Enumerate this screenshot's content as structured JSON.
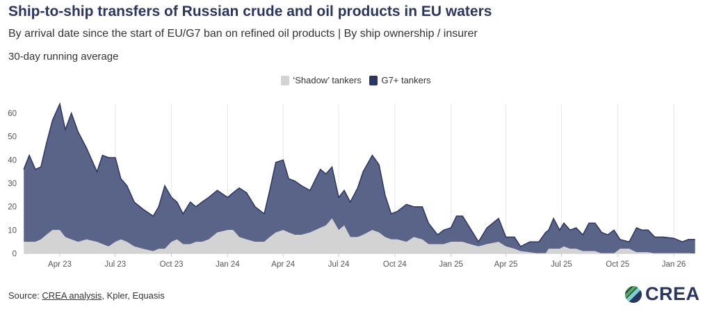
{
  "title": "Ship-to-ship transfers of Russian crude and oil products in EU waters",
  "subtitle": "By arrival date since the start of EU/G7 ban on refined oil products | By ship ownership / insurer",
  "note": "30-day running average",
  "source": {
    "prefix": "Source: ",
    "link": "CREA analysis",
    "rest": ", Kpler, Equasis"
  },
  "logo": "CREA",
  "colors": {
    "shadow": "#d3d3d3",
    "g7": "#5a6488",
    "g7_line": "#2b3561"
  },
  "chart_data": {
    "type": "area",
    "stacked": true,
    "title": "Ship-to-ship transfers of Russian crude and oil products in EU waters",
    "xlabel": "",
    "ylabel": "",
    "ylim": [
      0,
      65
    ],
    "yticks": [
      0,
      10,
      20,
      30,
      40,
      50,
      60
    ],
    "xticks": [
      {
        "date": "2023-04-01",
        "label": "Apr 23"
      },
      {
        "date": "2023-07-01",
        "label": "Jul 23"
      },
      {
        "date": "2023-10-01",
        "label": "Oct 23"
      },
      {
        "date": "2024-01-01",
        "label": "Jan 24"
      },
      {
        "date": "2024-04-01",
        "label": "Apr 24"
      },
      {
        "date": "2024-07-01",
        "label": "Jul 24"
      },
      {
        "date": "2024-10-01",
        "label": "Oct 24"
      },
      {
        "date": "2025-01-01",
        "label": "Jan 25"
      },
      {
        "date": "2025-04-01",
        "label": "Apr 25"
      },
      {
        "date": "2025-07-01",
        "label": "Jul 25"
      },
      {
        "date": "2025-10-01",
        "label": "Oct 25"
      },
      {
        "date": "2026-01-01",
        "label": "Jan 26"
      }
    ],
    "xlim": [
      "2023-02-01",
      "2026-02-05"
    ],
    "legend_position": "top-center",
    "grid": "vertical",
    "x": [
      "2023-02-01",
      "2023-02-10",
      "2023-02-20",
      "2023-03-01",
      "2023-03-10",
      "2023-03-20",
      "2023-04-01",
      "2023-04-10",
      "2023-04-20",
      "2023-05-01",
      "2023-05-15",
      "2023-06-01",
      "2023-06-10",
      "2023-06-20",
      "2023-07-01",
      "2023-07-10",
      "2023-07-20",
      "2023-08-01",
      "2023-08-15",
      "2023-09-01",
      "2023-09-10",
      "2023-09-20",
      "2023-10-01",
      "2023-10-10",
      "2023-10-20",
      "2023-11-01",
      "2023-11-10",
      "2023-11-20",
      "2023-12-01",
      "2023-12-15",
      "2024-01-01",
      "2024-01-10",
      "2024-01-20",
      "2024-02-01",
      "2024-02-15",
      "2024-03-01",
      "2024-03-10",
      "2024-03-20",
      "2024-04-01",
      "2024-04-10",
      "2024-04-20",
      "2024-05-01",
      "2024-05-15",
      "2024-06-01",
      "2024-06-10",
      "2024-06-20",
      "2024-07-01",
      "2024-07-10",
      "2024-07-20",
      "2024-08-01",
      "2024-08-10",
      "2024-08-25",
      "2024-09-05",
      "2024-09-15",
      "2024-09-25",
      "2024-10-05",
      "2024-10-20",
      "2024-11-01",
      "2024-11-15",
      "2024-11-25",
      "2024-12-10",
      "2024-12-20",
      "2025-01-01",
      "2025-01-10",
      "2025-01-20",
      "2025-02-01",
      "2025-02-15",
      "2025-03-01",
      "2025-03-20",
      "2025-04-01",
      "2025-04-15",
      "2025-04-25",
      "2025-05-10",
      "2025-05-25",
      "2025-06-05",
      "2025-06-10",
      "2025-06-18",
      "2025-06-28",
      "2025-07-05",
      "2025-07-15",
      "2025-07-25",
      "2025-08-05",
      "2025-08-15",
      "2025-08-25",
      "2025-09-05",
      "2025-09-15",
      "2025-09-25",
      "2025-10-05",
      "2025-10-20",
      "2025-11-01",
      "2025-11-10",
      "2025-11-20",
      "2025-12-01",
      "2025-12-15",
      "2026-01-01",
      "2026-01-15",
      "2026-01-25",
      "2026-02-05"
    ],
    "series": [
      {
        "name": "‘Shadow’ tankers",
        "color": "#d3d3d3",
        "values": [
          5,
          5,
          5,
          6,
          8,
          10,
          10,
          7,
          6,
          5,
          6,
          5,
          4,
          3,
          5,
          6,
          5,
          3,
          2,
          1,
          2,
          2,
          5,
          6,
          4,
          4,
          5,
          5,
          6,
          9,
          10,
          10,
          7,
          6,
          5,
          5,
          7,
          9,
          10,
          9,
          8,
          8,
          9,
          11,
          12,
          15,
          10,
          12,
          7,
          7,
          8,
          10,
          9,
          7,
          6,
          6,
          5,
          7,
          6,
          4,
          4,
          4,
          5,
          5,
          5,
          4,
          3,
          4,
          5,
          3,
          2,
          1,
          0.5,
          0,
          0,
          2,
          2,
          2,
          3,
          2,
          2,
          1,
          1,
          1,
          0,
          0,
          0,
          2,
          2,
          0.5,
          0.5,
          0.5,
          0,
          0,
          0,
          0,
          0,
          0
        ]
      },
      {
        "name": "G7+ tankers",
        "color": "#5a6488",
        "values": [
          31,
          37,
          31,
          31,
          39,
          47,
          54,
          46,
          54,
          47,
          39,
          30,
          38,
          38,
          36,
          26,
          24,
          19,
          17,
          15,
          18,
          27,
          19,
          16,
          13,
          18,
          15,
          17,
          18,
          18,
          14,
          16,
          21,
          20,
          15,
          12,
          20,
          30,
          30,
          23,
          23,
          21,
          18,
          25,
          22,
          22,
          14,
          15,
          15,
          21,
          27,
          32,
          29,
          18,
          11,
          12,
          16,
          13,
          14,
          9,
          4,
          6,
          6,
          11,
          11,
          7,
          2,
          7,
          10,
          4,
          5,
          2,
          4.5,
          5,
          9,
          8,
          13,
          8,
          10,
          8,
          9,
          7,
          12,
          12,
          9,
          8,
          10,
          4,
          3,
          10.5,
          9.5,
          9.5,
          7,
          7,
          6.5,
          5,
          6,
          6
        ]
      }
    ]
  }
}
